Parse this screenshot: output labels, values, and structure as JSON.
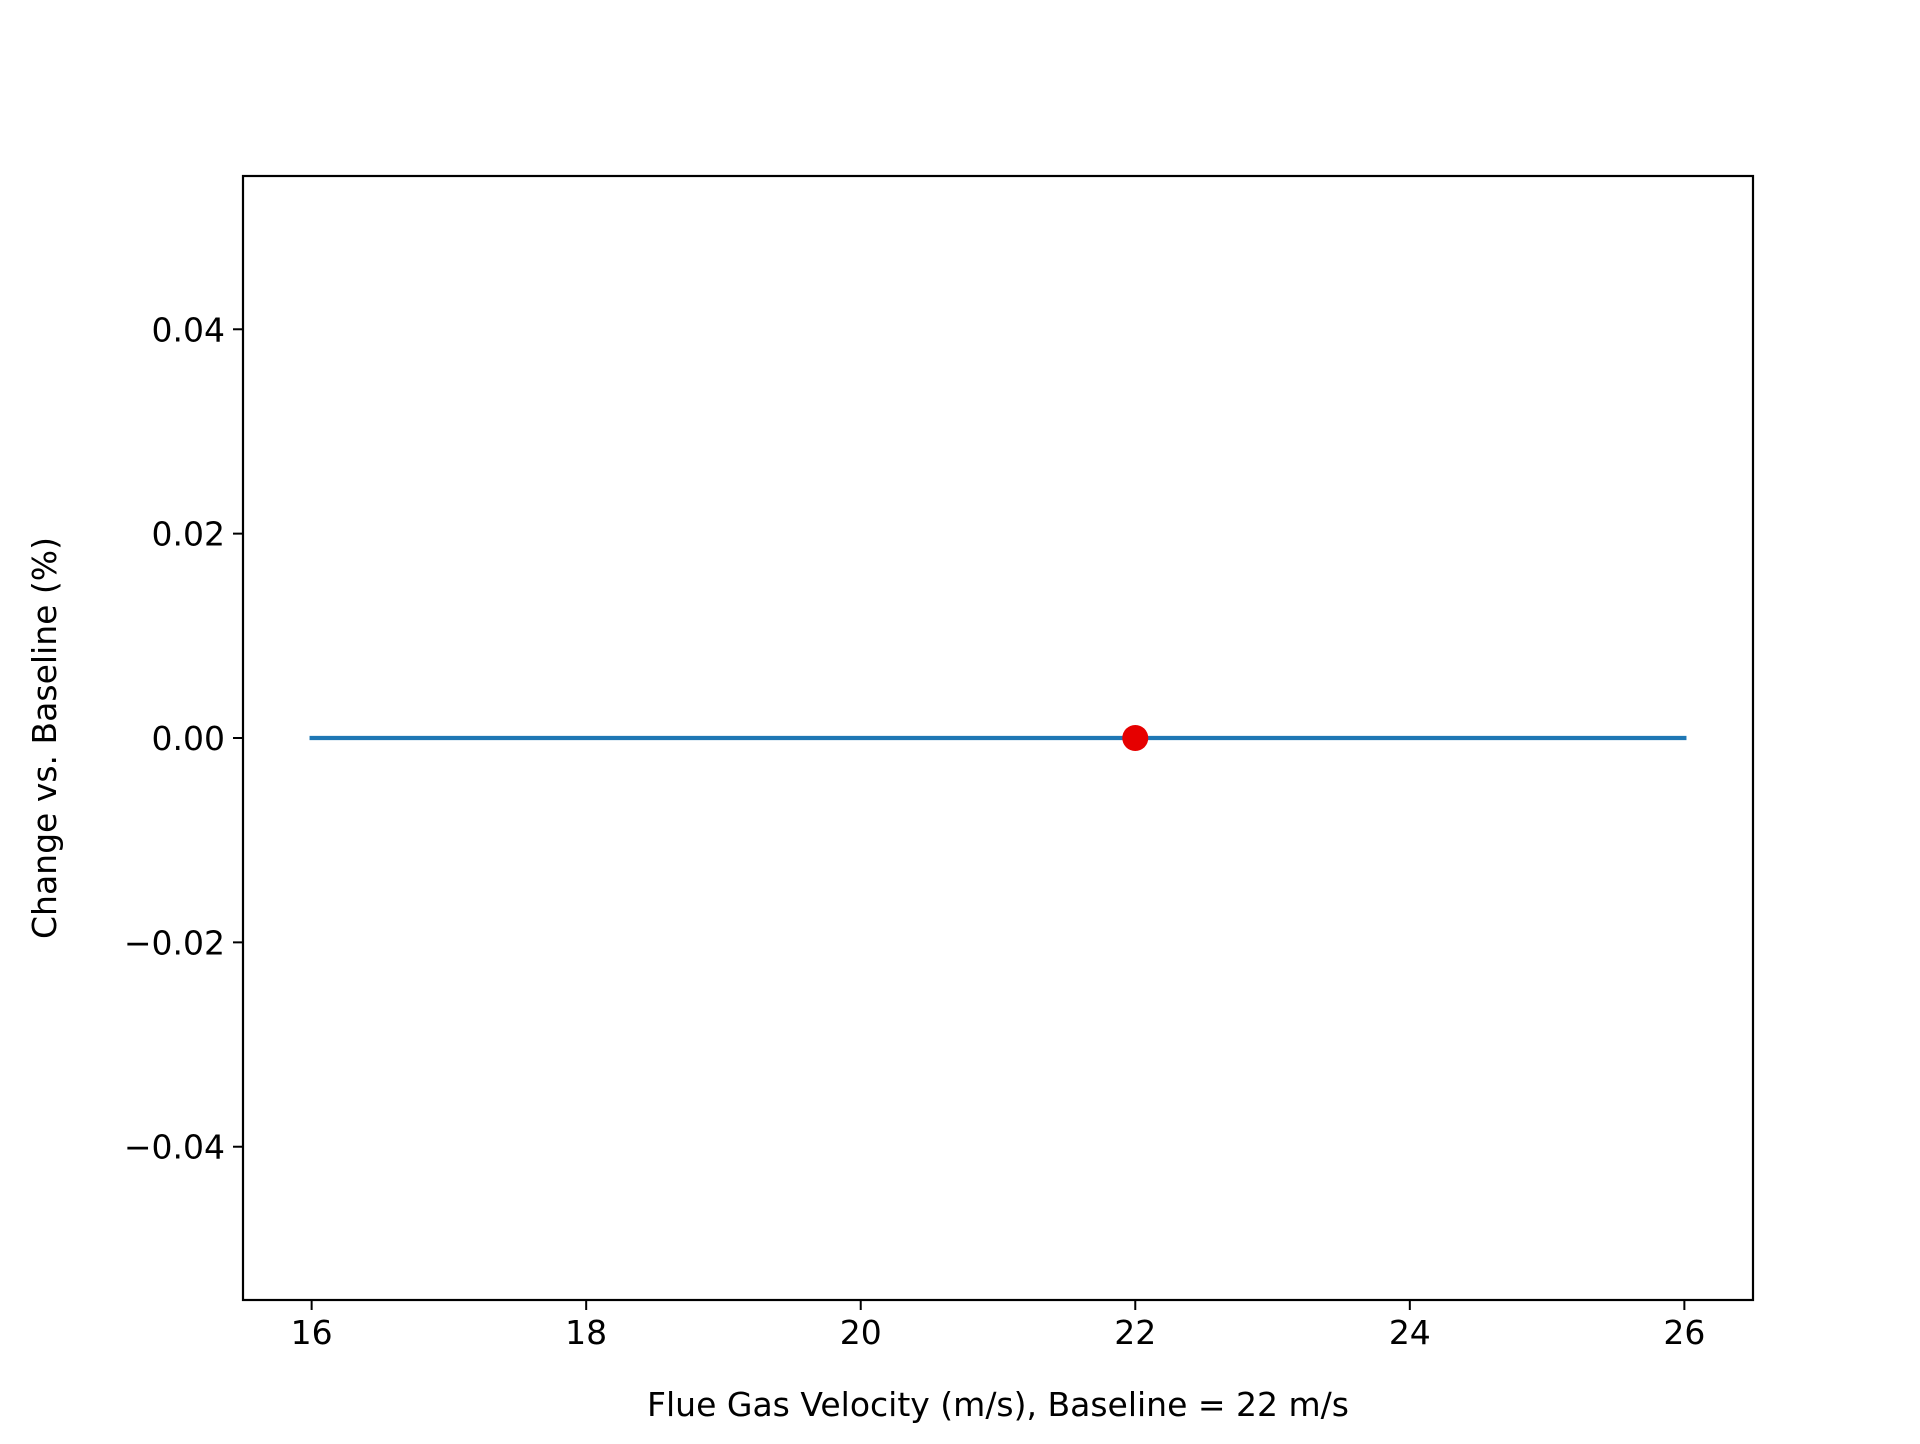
{
  "chart_data": {
    "type": "line",
    "title": "",
    "xlabel": "Flue Gas Velocity (m/s), Baseline = 22 m/s",
    "ylabel": "Change vs. Baseline (%)",
    "xlim": [
      15.5,
      26.5
    ],
    "ylim": [
      -0.055,
      0.055
    ],
    "x_ticks": [
      16,
      18,
      20,
      22,
      24,
      26
    ],
    "x_tick_labels": [
      "16",
      "18",
      "20",
      "22",
      "24",
      "26"
    ],
    "y_ticks": [
      -0.04,
      -0.02,
      0.0,
      0.02,
      0.04
    ],
    "y_tick_labels": [
      "−0.04",
      "−0.02",
      "0.00",
      "0.02",
      "0.04"
    ],
    "grid": false,
    "series": [
      {
        "x": [
          16,
          18,
          20,
          22,
          24,
          26
        ],
        "y": [
          0,
          0,
          0,
          0,
          0,
          0
        ],
        "color": "#1f77b4"
      }
    ],
    "baseline_point": {
      "x": 22,
      "y": 0,
      "color": "#e60000"
    }
  }
}
